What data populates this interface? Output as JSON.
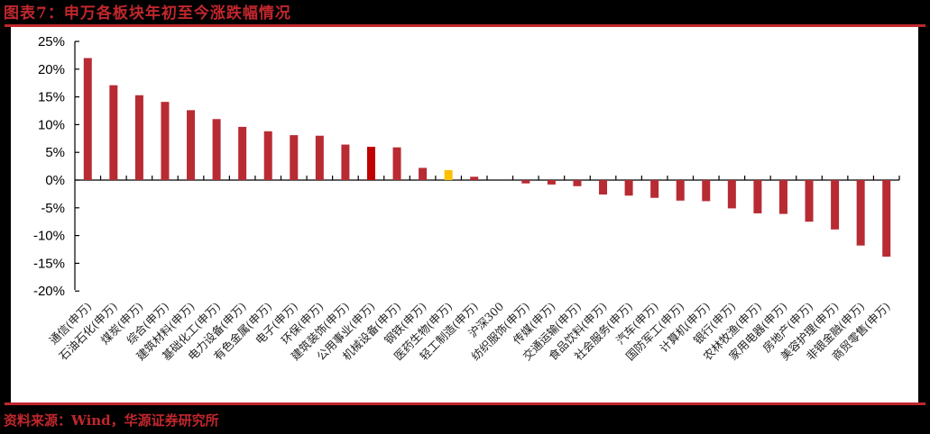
{
  "header": {
    "title": "图表7：申万各板块年初至今涨跌幅情况"
  },
  "footer": {
    "source": "资料来源：Wind，华源证券研究所"
  },
  "colors": {
    "accent": "#c0272d",
    "bar_default": "#b82b33",
    "bar_highlight_red": "#c00000",
    "bar_highlight_yellow": "#ffc000"
  },
  "chart_data": {
    "type": "bar",
    "title": "申万各板块年初至今涨跌幅情况",
    "xlabel": "",
    "ylabel": "",
    "ylim": [
      -0.2,
      0.25
    ],
    "yticks": [
      "25%",
      "20%",
      "15%",
      "10%",
      "5%",
      "0%",
      "-5%",
      "-10%",
      "-15%",
      "-20%"
    ],
    "grid": false,
    "legend": null,
    "categories": [
      "通信(申万)",
      "石油石化(申万)",
      "煤炭(申万)",
      "综合(申万)",
      "建筑材料(申万)",
      "基础化工(申万)",
      "电力设备(申万)",
      "有色金属(申万)",
      "电子(申万)",
      "环保(申万)",
      "建筑装饰(申万)",
      "公用事业(申万)",
      "机械设备(申万)",
      "钢铁(申万)",
      "医药生物(申万)",
      "轻工制造(申万)",
      "沪深300",
      "纺织服饰(申万)",
      "传媒(申万)",
      "交通运输(申万)",
      "食品饮料(申万)",
      "社会服务(申万)",
      "汽车(申万)",
      "国防军工(申万)",
      "计算机(申万)",
      "银行(申万)",
      "农林牧渔(申万)",
      "家用电器(申万)",
      "房地产(申万)",
      "美容护理(申万)",
      "非银金融(申万)",
      "商贸零售(申万)"
    ],
    "values": [
      0.22,
      0.171,
      0.153,
      0.141,
      0.126,
      0.11,
      0.096,
      0.088,
      0.081,
      0.08,
      0.064,
      0.06,
      0.059,
      0.022,
      0.018,
      0.006,
      0.0,
      -0.006,
      -0.008,
      -0.011,
      -0.026,
      -0.028,
      -0.032,
      -0.037,
      -0.038,
      -0.051,
      -0.06,
      -0.061,
      -0.075,
      -0.089,
      -0.118,
      -0.138
    ],
    "bar_colors": {
      "公用事业(申万)": "#c00000",
      "医药生物(申万)": "#ffc000"
    },
    "value_format": "percent"
  }
}
